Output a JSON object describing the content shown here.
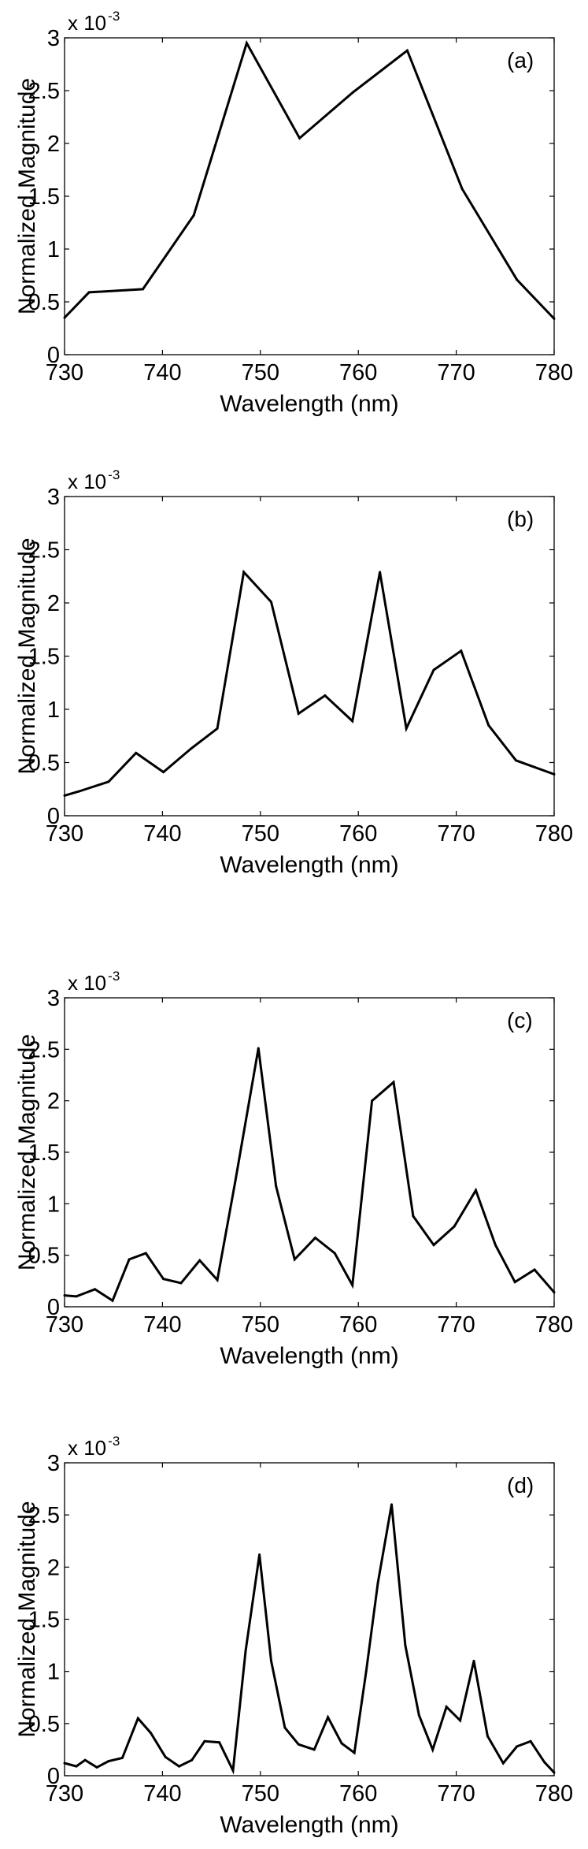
{
  "colors": {
    "line": "#000000",
    "axis": "#000000",
    "background": "#ffffff"
  },
  "chart_data": [
    {
      "type": "line",
      "panel_label": "(a)",
      "xlabel": "Wavelength (nm)",
      "ylabel": "Normalized Magnitude",
      "exponent_label": "x 10",
      "exponent_power": "-3",
      "xlim": [
        730,
        780
      ],
      "ylim": [
        0,
        3
      ],
      "xticks": [
        "730",
        "740",
        "750",
        "760",
        "770",
        "780"
      ],
      "yticks": [
        "0",
        "0.5",
        "1",
        "1.5",
        "2",
        "2.5",
        "3"
      ],
      "grid": false,
      "x": [
        730,
        732.5,
        738,
        743.2,
        748.6,
        754,
        759.4,
        765,
        770.6,
        776.2,
        780
      ],
      "y": [
        0.35,
        0.59,
        0.62,
        1.32,
        2.95,
        2.05,
        2.48,
        2.88,
        1.57,
        0.71,
        0.34
      ]
    },
    {
      "type": "line",
      "panel_label": "(b)",
      "xlabel": "Wavelength (nm)",
      "ylabel": "Normalized Magnitude",
      "exponent_label": "x 10",
      "exponent_power": "-3",
      "xlim": [
        730,
        780
      ],
      "ylim": [
        0,
        3
      ],
      "xticks": [
        "730",
        "740",
        "750",
        "760",
        "770",
        "780"
      ],
      "yticks": [
        "0",
        "0.5",
        "1",
        "1.5",
        "2",
        "2.5",
        "3"
      ],
      "grid": false,
      "x": [
        730,
        731.5,
        734.5,
        737.3,
        740.1,
        742.9,
        745.6,
        748.3,
        751.1,
        753.9,
        756.6,
        759.4,
        762.2,
        764.9,
        767.7,
        770.5,
        773.3,
        776.1,
        780
      ],
      "y": [
        0.19,
        0.23,
        0.32,
        0.59,
        0.41,
        0.63,
        0.82,
        2.29,
        2.01,
        0.96,
        1.13,
        0.89,
        2.29,
        0.82,
        1.37,
        1.55,
        0.85,
        0.52,
        0.39
      ]
    },
    {
      "type": "line",
      "panel_label": "(c)",
      "xlabel": "Wavelength (nm)",
      "ylabel": "Normalized Magnitude",
      "exponent_label": "x 10",
      "exponent_power": "-3",
      "xlim": [
        730,
        780
      ],
      "ylim": [
        0,
        3
      ],
      "xticks": [
        "730",
        "740",
        "750",
        "760",
        "770",
        "780"
      ],
      "yticks": [
        "0",
        "0.5",
        "1",
        "1.5",
        "2",
        "2.5",
        "3"
      ],
      "grid": false,
      "x": [
        730,
        731.2,
        733.1,
        734.9,
        736.6,
        738.3,
        740.1,
        741.9,
        743.8,
        745.6,
        747.4,
        749.8,
        751.6,
        753.5,
        755.6,
        757.6,
        759.4,
        761.4,
        763.6,
        765.6,
        767.7,
        769.8,
        772,
        774,
        776,
        778,
        780
      ],
      "y": [
        0.11,
        0.1,
        0.17,
        0.06,
        0.46,
        0.52,
        0.27,
        0.23,
        0.45,
        0.26,
        1.2,
        2.51,
        1.17,
        0.46,
        0.67,
        0.52,
        0.21,
        2.0,
        2.18,
        0.88,
        0.6,
        0.78,
        1.13,
        0.6,
        0.24,
        0.36,
        0.14
      ]
    },
    {
      "type": "line",
      "panel_label": "(d)",
      "xlabel": "Wavelength (nm)",
      "ylabel": "Normalized Magnitude",
      "exponent_label": "x 10",
      "exponent_power": "-3",
      "xlim": [
        730,
        780
      ],
      "ylim": [
        0,
        3
      ],
      "xticks": [
        "730",
        "740",
        "750",
        "760",
        "770",
        "780"
      ],
      "yticks": [
        "0",
        "0.5",
        "1",
        "1.5",
        "2",
        "2.5",
        "3"
      ],
      "grid": false,
      "x": [
        730,
        731.2,
        732.1,
        733.3,
        734.5,
        735.9,
        737.5,
        738.8,
        740.3,
        741.7,
        743,
        744.3,
        745.8,
        747.2,
        748.5,
        749.9,
        751.1,
        752.5,
        753.9,
        755.5,
        756.9,
        758.3,
        759.6,
        760.8,
        762,
        763.4,
        764.8,
        766.2,
        767.6,
        769,
        770.4,
        771.8,
        773.2,
        774.8,
        776.2,
        777.6,
        779,
        780
      ],
      "y": [
        0.12,
        0.09,
        0.15,
        0.08,
        0.14,
        0.17,
        0.55,
        0.41,
        0.18,
        0.09,
        0.15,
        0.33,
        0.32,
        0.05,
        1.2,
        2.12,
        1.1,
        0.46,
        0.3,
        0.25,
        0.56,
        0.31,
        0.22,
        1.0,
        1.85,
        2.6,
        1.25,
        0.58,
        0.25,
        0.66,
        0.53,
        1.1,
        0.38,
        0.12,
        0.28,
        0.33,
        0.13,
        0.03
      ]
    }
  ]
}
